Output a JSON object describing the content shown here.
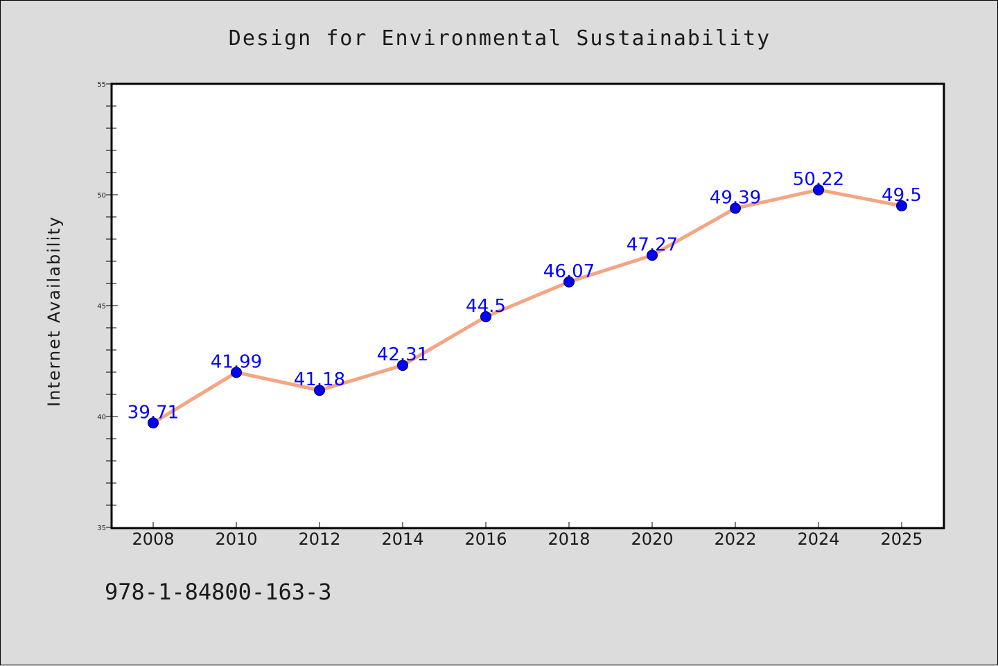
{
  "chart_data": {
    "type": "line",
    "title": "Design for Environmental Sustainability",
    "xlabel": "",
    "ylabel": "Internet Availability",
    "categories": [
      "2008",
      "2010",
      "2012",
      "2014",
      "2016",
      "2018",
      "2020",
      "2022",
      "2024",
      "2025"
    ],
    "series": [
      {
        "values": [
          39.71,
          41.99,
          41.18,
          42.31,
          44.5,
          46.07,
          47.27,
          49.39,
          50.22,
          49.5
        ]
      }
    ],
    "data_labels": [
      "39.71",
      "41.99",
      "41.18",
      "42.31",
      "44.5",
      "46.07",
      "47.27",
      "49.39",
      "50.22",
      "49.5"
    ],
    "ylim": [
      35,
      55
    ],
    "yticks": [
      35,
      40,
      45,
      50,
      55
    ],
    "grid": false,
    "colors": {
      "line": "#f4a582",
      "marker": "#0000ff",
      "label": "#0000ff",
      "plot_background": "#ffffff",
      "figure_background": "#dcdcdc"
    }
  },
  "footer_text": "978-1-84800-163-3"
}
